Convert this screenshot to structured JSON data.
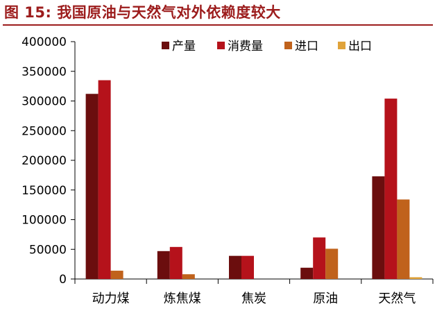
{
  "title": "图 15:  我国原油与天然气对外依赖度较大",
  "chart_data": {
    "type": "bar",
    "title": "图 15:  我国原油与天然气对外依赖度较大",
    "xlabel": "",
    "ylabel": "",
    "categories": [
      "动力煤",
      "炼焦煤",
      "焦炭",
      "原油",
      "天然气"
    ],
    "ylim": [
      0,
      400000
    ],
    "yticks": [
      0,
      50000,
      100000,
      150000,
      200000,
      250000,
      300000,
      350000,
      400000
    ],
    "grid": false,
    "legend_position": "top-right",
    "series": [
      {
        "name": "产量",
        "color": "#6b0e0e",
        "values": [
          312000,
          47000,
          39000,
          19000,
          173000
        ]
      },
      {
        "name": "消费量",
        "color": "#b5121b",
        "values": [
          335000,
          54000,
          39000,
          70000,
          304000
        ]
      },
      {
        "name": "进口",
        "color": "#c0621c",
        "values": [
          14000,
          8000,
          0,
          51000,
          134000
        ]
      },
      {
        "name": "出口",
        "color": "#e0a33a",
        "values": [
          0,
          0,
          0,
          0,
          3000
        ]
      }
    ]
  }
}
